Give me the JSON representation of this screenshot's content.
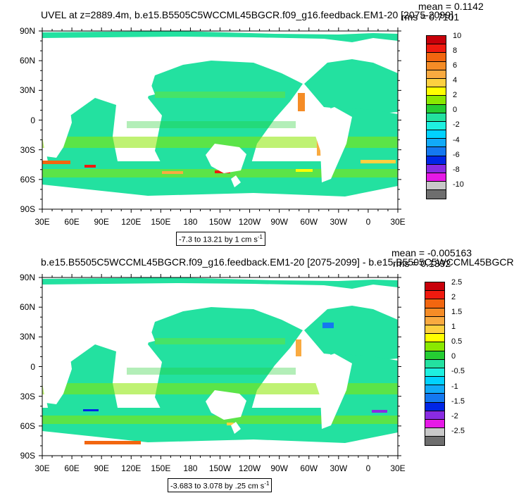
{
  "chart_data": [
    {
      "type": "heatmap",
      "title": "UVEL at z=2889.4m, b.e15.B5505C5WCCML45BGCR.f09_g16.feedback.EM1-20 [2075-2099]",
      "mean_label": "mean = 0.1142",
      "rms_label": "rms = 0.7101",
      "range_label": "-7.3 to 13.21 by 1 cm s",
      "range_unit_exp": "-1",
      "y_ticks": [
        "90N",
        "60N",
        "30N",
        "0",
        "30S",
        "60S",
        "90S"
      ],
      "x_ticks": [
        "30E",
        "60E",
        "90E",
        "120E",
        "150E",
        "180",
        "150W",
        "120W",
        "90W",
        "60W",
        "30W",
        "0",
        "30E"
      ],
      "colorbar_levels": [
        "10",
        "8",
        "6",
        "4",
        "2",
        "0",
        "-2",
        "-4",
        "-6",
        "-8",
        "-10"
      ],
      "colorbar_colors": [
        "#c8000a",
        "#f01a0f",
        "#f2660f",
        "#f58c26",
        "#f9aa40",
        "#fdd040",
        "#ffff00",
        "#8ae800",
        "#25cd33",
        "#23e1a0",
        "#1ef0e0",
        "#00d2ff",
        "#11aaf8",
        "#1478f0",
        "#0026e6",
        "#8a2be2",
        "#e619e6",
        "#c8c8c8",
        "#6e6e6e"
      ],
      "lon_range": [
        30,
        390
      ],
      "lat_range": [
        -90,
        90
      ]
    },
    {
      "type": "heatmap",
      "title": "b.e15.B5505C5WCCML45BGCR.f09_g16.feedback.EM1-20 [2075-2099] - b.e15.B5505C5WCCML45BGCR",
      "mean_label": "mean = -0.005163",
      "rms_label": "rms = 0.1392",
      "range_label": "-3.683 to 3.078 by .25 cm s",
      "range_unit_exp": "-1",
      "y_ticks": [
        "90N",
        "60N",
        "30N",
        "0",
        "30S",
        "60S",
        "90S"
      ],
      "x_ticks": [
        "30E",
        "60E",
        "90E",
        "120E",
        "150E",
        "180",
        "150W",
        "120W",
        "90W",
        "60W",
        "30W",
        "0",
        "30E"
      ],
      "colorbar_levels": [
        "2.5",
        "2",
        "1.5",
        "1",
        "0.5",
        "0",
        "-0.5",
        "-1",
        "-1.5",
        "-2",
        "-2.5"
      ],
      "colorbar_colors": [
        "#c8000a",
        "#f01a0f",
        "#f2660f",
        "#f58c26",
        "#f9aa40",
        "#fdd040",
        "#ffff00",
        "#8ae800",
        "#25cd33",
        "#23e1a0",
        "#1ef0e0",
        "#00d2ff",
        "#11aaf8",
        "#1478f0",
        "#0026e6",
        "#8a2be2",
        "#e619e6",
        "#c8c8c8",
        "#6e6e6e"
      ],
      "lon_range": [
        30,
        390
      ],
      "lat_range": [
        -90,
        90
      ]
    }
  ]
}
